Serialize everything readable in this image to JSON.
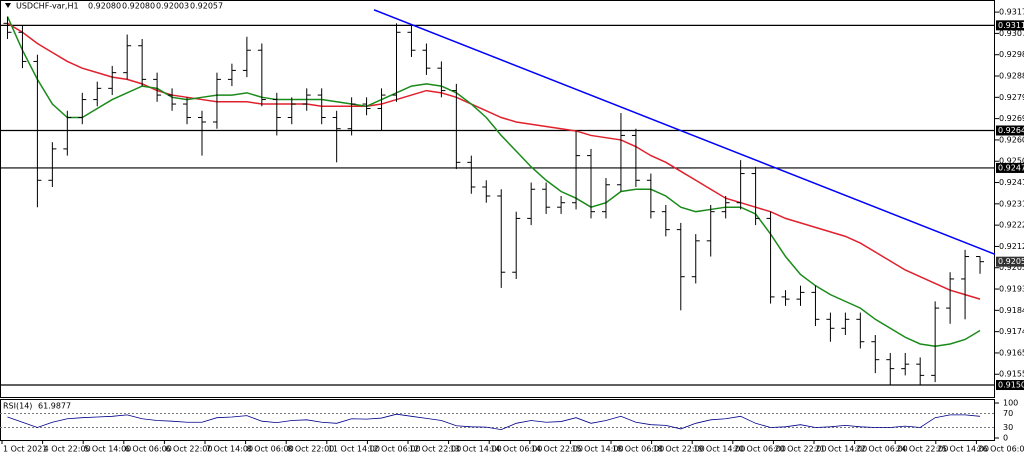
{
  "chart_data": {
    "type": "candlestick",
    "symbol": "USDCHF-var,H1",
    "header_ohlc": [
      {
        "value": 0.9208,
        "label": "0.92080"
      },
      {
        "value": 0.9208,
        "label": "0.92080"
      },
      {
        "value": 0.92003,
        "label": "0.92003"
      },
      {
        "value": 0.92057,
        "label": "0.92057"
      }
    ],
    "color": "#000000",
    "open": [
      0.9312,
      0.9308,
      0.9295,
      0.9242,
      0.9256,
      0.927,
      0.9278,
      0.9283,
      0.929,
      0.9302,
      0.9287,
      0.928,
      0.9276,
      0.927,
      0.9268,
      0.9287,
      0.9291,
      0.93,
      0.9278,
      0.927,
      0.9276,
      0.928,
      0.927,
      0.9265,
      0.9276,
      0.9274,
      0.928,
      0.9308,
      0.93,
      0.9292,
      0.9282,
      0.925,
      0.9239,
      0.9235,
      0.9201,
      0.9225,
      0.9238,
      0.923,
      0.9232,
      0.9253,
      0.9228,
      0.924,
      0.9262,
      0.9242,
      0.9228,
      0.922,
      0.9199,
      0.9215,
      0.9228,
      0.9232,
      0.9245,
      0.9225,
      0.919,
      0.9189,
      0.9192,
      0.918,
      0.9176,
      0.918,
      0.917,
      0.9162,
      0.9158,
      0.916,
      0.9155,
      0.9185,
      0.9198,
      0.9208
    ],
    "high": [
      0.9315,
      0.9311,
      0.9298,
      0.9259,
      0.9273,
      0.9281,
      0.9286,
      0.9293,
      0.9307,
      0.9305,
      0.929,
      0.9283,
      0.9279,
      0.9273,
      0.929,
      0.9294,
      0.9306,
      0.9303,
      0.9281,
      0.9279,
      0.9283,
      0.9283,
      0.9273,
      0.9279,
      0.9279,
      0.9283,
      0.9312,
      0.9311,
      0.9303,
      0.9295,
      0.9285,
      0.9253,
      0.9242,
      0.9238,
      0.9228,
      0.9241,
      0.9241,
      0.9235,
      0.9264,
      0.9256,
      0.9243,
      0.9272,
      0.9265,
      0.9245,
      0.9231,
      0.9223,
      0.9218,
      0.9231,
      0.9235,
      0.9251,
      0.9248,
      0.9228,
      0.9193,
      0.9195,
      0.9195,
      0.9183,
      0.9183,
      0.9183,
      0.9173,
      0.9165,
      0.9165,
      0.9163,
      0.9188,
      0.9201,
      0.9211,
      0.9208
    ],
    "low": [
      0.9305,
      0.9292,
      0.923,
      0.9239,
      0.9253,
      0.9267,
      0.9275,
      0.928,
      0.9287,
      0.9284,
      0.9277,
      0.9273,
      0.9267,
      0.9253,
      0.9265,
      0.9284,
      0.9288,
      0.9275,
      0.9262,
      0.9267,
      0.9273,
      0.9267,
      0.925,
      0.9262,
      0.9271,
      0.9264,
      0.9277,
      0.9297,
      0.9289,
      0.9279,
      0.9247,
      0.9236,
      0.9232,
      0.9194,
      0.9198,
      0.9222,
      0.9227,
      0.9227,
      0.9229,
      0.9225,
      0.9225,
      0.9237,
      0.9239,
      0.9225,
      0.9217,
      0.9184,
      0.9196,
      0.9208,
      0.9225,
      0.9229,
      0.9222,
      0.9187,
      0.9186,
      0.9186,
      0.9177,
      0.917,
      0.9173,
      0.9167,
      0.9156,
      0.91507,
      0.9155,
      0.91507,
      0.9152,
      0.9178,
      0.918,
      0.92003
    ],
    "close": [
      0.9308,
      0.9295,
      0.9242,
      0.9256,
      0.927,
      0.9278,
      0.9283,
      0.929,
      0.9302,
      0.9287,
      0.928,
      0.9276,
      0.927,
      0.9268,
      0.9287,
      0.9291,
      0.93,
      0.9278,
      0.927,
      0.9276,
      0.928,
      0.927,
      0.9265,
      0.9276,
      0.9274,
      0.928,
      0.9308,
      0.93,
      0.9292,
      0.9282,
      0.925,
      0.9239,
      0.9235,
      0.9201,
      0.9225,
      0.9238,
      0.923,
      0.9232,
      0.9253,
      0.9228,
      0.924,
      0.9262,
      0.9242,
      0.9228,
      0.922,
      0.9199,
      0.9215,
      0.9228,
      0.9232,
      0.9245,
      0.9225,
      0.919,
      0.9189,
      0.9192,
      0.918,
      0.9176,
      0.918,
      0.917,
      0.9162,
      0.9158,
      0.916,
      0.9155,
      0.9185,
      0.9198,
      0.9208,
      0.92057
    ],
    "series": [
      {
        "color": "#e0202c",
        "values": [
          0.9312,
          0.9308,
          0.9303,
          0.9299,
          0.9295,
          0.9292,
          0.929,
          0.9288,
          0.9287,
          0.9285,
          0.9282,
          0.928,
          0.9279,
          0.9278,
          0.9277,
          0.9277,
          0.9277,
          0.9276,
          0.9276,
          0.9276,
          0.9276,
          0.9275,
          0.9275,
          0.9275,
          0.9275,
          0.9276,
          0.9278,
          0.928,
          0.9282,
          0.9281,
          0.9279,
          0.9276,
          0.9273,
          0.927,
          0.9268,
          0.9267,
          0.9266,
          0.9265,
          0.9264,
          0.9262,
          0.9261,
          0.926,
          0.9257,
          0.9253,
          0.925,
          0.9246,
          0.9242,
          0.9238,
          0.9234,
          0.9232,
          0.923,
          0.9228,
          0.9225,
          0.9223,
          0.9221,
          0.9219,
          0.9217,
          0.9214,
          0.921,
          0.9206,
          0.9202,
          0.9199,
          0.9196,
          0.9193,
          0.9191,
          0.9189
        ]
      },
      {
        "color": "#1a8a1a",
        "values": [
          0.9315,
          0.93,
          0.9287,
          0.9276,
          0.927,
          0.927,
          0.9274,
          0.9278,
          0.9281,
          0.9284,
          0.9283,
          0.9279,
          0.9278,
          0.9279,
          0.928,
          0.928,
          0.9281,
          0.9279,
          0.9278,
          0.9278,
          0.9278,
          0.9278,
          0.9277,
          0.9276,
          0.9275,
          0.9278,
          0.9281,
          0.9284,
          0.9285,
          0.9284,
          0.9281,
          0.9276,
          0.927,
          0.9262,
          0.9255,
          0.9248,
          0.9242,
          0.9237,
          0.9234,
          0.923,
          0.9232,
          0.9237,
          0.9238,
          0.9238,
          0.9235,
          0.923,
          0.9228,
          0.9229,
          0.923,
          0.923,
          0.9227,
          0.9218,
          0.9208,
          0.92,
          0.9195,
          0.9191,
          0.9188,
          0.9185,
          0.918,
          0.9176,
          0.9172,
          0.9169,
          0.9168,
          0.9169,
          0.9171,
          0.9175
        ]
      }
    ],
    "trendline": {
      "color": "#0000ff",
      "x": [
        24.5,
        66
      ],
      "values": [
        0.9318,
        0.9209
      ]
    },
    "levels": [
      0.93111,
      0.92642,
      0.92475,
      0.91507
    ],
    "current_price": 0.92057,
    "xlim": [
      -0.5,
      66
    ],
    "ylim": [
      0.91458,
      0.93224
    ],
    "yticks": [
      {
        "value": 0.9317,
        "label": "0.93170"
      },
      0.93075,
      {
        "value": 0.9298,
        "label": "0.92980"
      },
      0.92885,
      {
        "value": 0.9279,
        "label": "0.92790"
      },
      0.92695,
      {
        "value": 0.926,
        "label": "0.92600"
      },
      0.92505,
      {
        "value": 0.9241,
        "label": "0.92410"
      },
      0.92315,
      {
        "value": 0.9222,
        "label": "0.92220"
      },
      0.92125,
      {
        "value": 0.9203,
        "label": "0.92030"
      },
      0.91935,
      {
        "value": 0.9184,
        "label": "0.91840"
      },
      0.91745,
      {
        "value": 0.9165,
        "label": "0.91650"
      },
      0.91555
    ],
    "xlabels": [
      "1 Oct 2021",
      "4 Oct 22:00",
      "5 Oct 14:00",
      "6 Oct 06:00",
      "6 Oct 22:00",
      "7 Oct 14:00",
      "8 Oct 06:00",
      "8 Oct 22:00",
      "11 Oct 14:00",
      "12 Oct 06:00",
      "12 Oct 22:00",
      "13 Oct 14:00",
      "14 Oct 06:00",
      "14 Oct 22:00",
      "15 Oct 14:00",
      "18 Oct 06:00",
      "18 Oct 22:00",
      "19 Oct 14:00",
      "20 Oct 06:00",
      "20 Oct 22:00",
      "21 Oct 14:00",
      "22 Oct 06:00",
      "24 Oct 22:00",
      "25 Oct 14:00",
      "26 Oct 06:00"
    ],
    "rsi": {
      "name": "RSI(14)",
      "color": "#00008b",
      "values": [
        60,
        45,
        30,
        45,
        55,
        58,
        60,
        62,
        66,
        55,
        50,
        48,
        45,
        45,
        58,
        60,
        64,
        48,
        44,
        50,
        52,
        45,
        42,
        55,
        54,
        57,
        68,
        62,
        56,
        50,
        35,
        32,
        31,
        24,
        42,
        50,
        45,
        47,
        58,
        42,
        50,
        62,
        45,
        38,
        36,
        26,
        42,
        52,
        55,
        62,
        42,
        30,
        32,
        38,
        30,
        32,
        36,
        32,
        30,
        30,
        34,
        30,
        58,
        66,
        66,
        61.9877
      ],
      "ylim": [
        0,
        100
      ],
      "yticks": [
        100,
        70,
        30,
        0
      ]
    }
  }
}
